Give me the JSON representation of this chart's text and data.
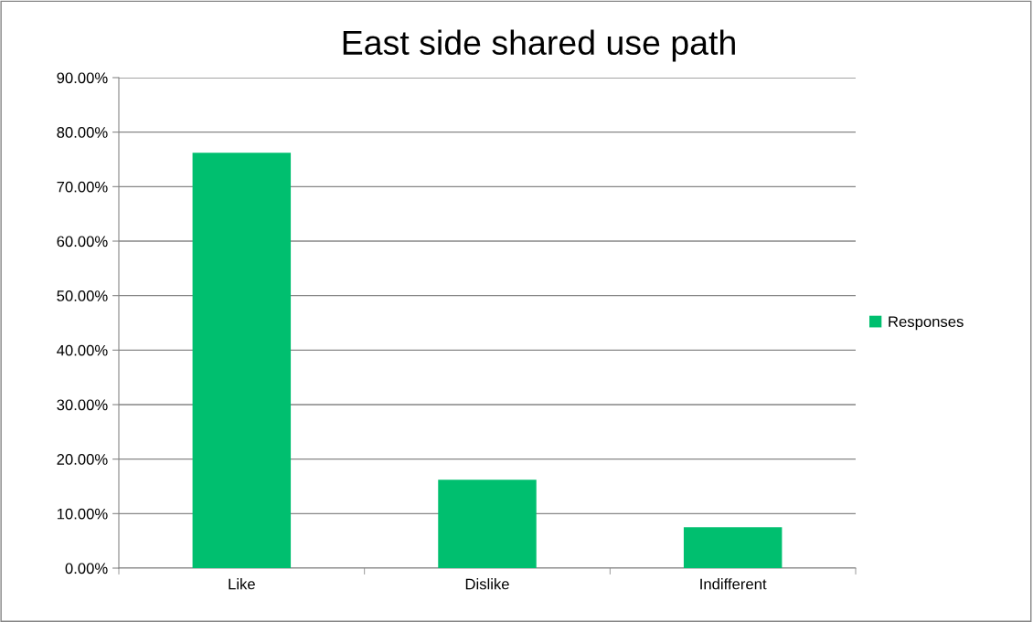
{
  "chart_data": {
    "type": "bar",
    "title": "East side shared use path",
    "categories": [
      "Like",
      "Dislike",
      "Indifferent"
    ],
    "series": [
      {
        "name": "Responses",
        "color": "#00bf6f",
        "values": [
          76.2,
          16.2,
          7.5
        ]
      }
    ],
    "ylim": [
      0,
      90
    ],
    "yticks": [
      {
        "value": 0,
        "label": "0.00%"
      },
      {
        "value": 10,
        "label": "10.00%"
      },
      {
        "value": 20,
        "label": "20.00%"
      },
      {
        "value": 30,
        "label": "30.00%"
      },
      {
        "value": 40,
        "label": "40.00%"
      },
      {
        "value": 50,
        "label": "50.00%"
      },
      {
        "value": 60,
        "label": "60.00%"
      },
      {
        "value": 70,
        "label": "70.00%"
      },
      {
        "value": 80,
        "label": "80.00%"
      },
      {
        "value": 90,
        "label": "90.00%"
      }
    ],
    "grid": "y",
    "legend": "right"
  }
}
